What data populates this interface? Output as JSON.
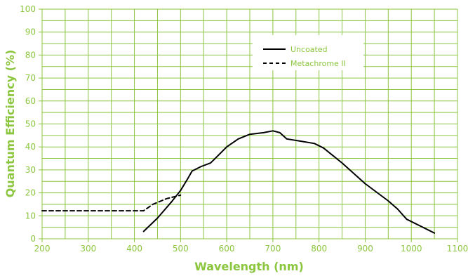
{
  "chart_data": {
    "type": "line",
    "xlabel": "Wavelength (nm)",
    "ylabel": "Quantum Efficiency  (%)",
    "xlim": [
      200,
      1100
    ],
    "ylim": [
      0,
      100
    ],
    "x_ticks": [
      200,
      300,
      400,
      500,
      600,
      700,
      800,
      900,
      1000,
      1100
    ],
    "y_ticks": [
      0,
      10,
      20,
      30,
      40,
      50,
      60,
      70,
      80,
      90,
      100
    ],
    "grid": "on",
    "legend_position": "top-right",
    "colors": {
      "grid": "#8cc63f",
      "line": "#000000",
      "text": "#8cc63f"
    },
    "series": [
      {
        "name": "Uncoated",
        "style": "solid",
        "points": [
          [
            420,
            3.2
          ],
          [
            450,
            9
          ],
          [
            480,
            16
          ],
          [
            500,
            21
          ],
          [
            515,
            26
          ],
          [
            525,
            29.5
          ],
          [
            545,
            31.5
          ],
          [
            565,
            33
          ],
          [
            580,
            36
          ],
          [
            600,
            40
          ],
          [
            625,
            43.5
          ],
          [
            650,
            45.5
          ],
          [
            680,
            46.2
          ],
          [
            700,
            47
          ],
          [
            715,
            46.2
          ],
          [
            730,
            43.5
          ],
          [
            760,
            42.5
          ],
          [
            790,
            41.5
          ],
          [
            810,
            39.5
          ],
          [
            850,
            33
          ],
          [
            900,
            24
          ],
          [
            950,
            16.5
          ],
          [
            970,
            13
          ],
          [
            990,
            8.5
          ],
          [
            1020,
            5.5
          ],
          [
            1050,
            2.5
          ]
        ]
      },
      {
        "name": "Metachrome II",
        "style": "dashed",
        "points": [
          [
            200,
            12.2
          ],
          [
            420,
            12.2
          ],
          [
            440,
            15
          ],
          [
            470,
            17.5
          ],
          [
            500,
            19
          ]
        ]
      }
    ]
  }
}
